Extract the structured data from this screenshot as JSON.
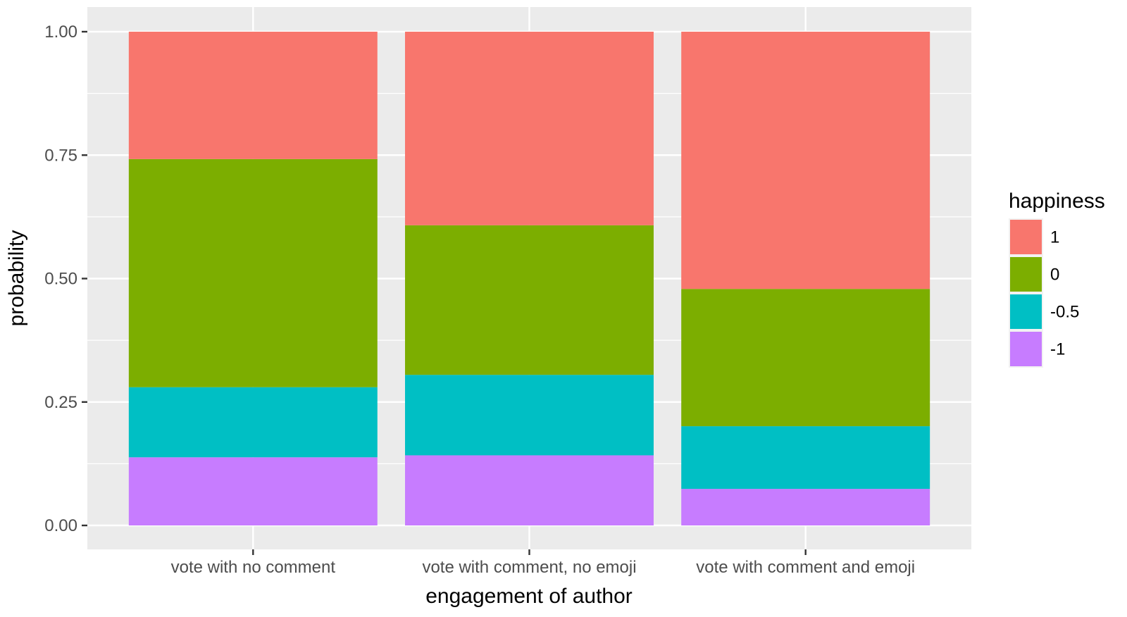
{
  "chart_data": {
    "type": "bar",
    "stacked": true,
    "categories": [
      "vote with no comment",
      "vote with comment, no emoji",
      "vote with comment and emoji"
    ],
    "series": [
      {
        "name": "-1",
        "color": "#C77CFF",
        "values": [
          0.138,
          0.142,
          0.074
        ]
      },
      {
        "name": "-0.5",
        "color": "#00BFC4",
        "values": [
          0.142,
          0.163,
          0.127
        ]
      },
      {
        "name": "0",
        "color": "#7CAE00",
        "values": [
          0.462,
          0.303,
          0.278
        ]
      },
      {
        "name": "1",
        "color": "#F8766D",
        "values": [
          0.258,
          0.392,
          0.521
        ]
      }
    ],
    "legend_order": [
      "1",
      "0",
      "-0.5",
      "-1"
    ],
    "legend_title": "happiness",
    "legend_position": "right",
    "xlabel": "engagement of author",
    "ylabel": "probability",
    "ylim": [
      0,
      1
    ],
    "yticks": [
      "0.00",
      "0.25",
      "0.50",
      "0.75",
      "1.00"
    ],
    "grid": true,
    "panel_background": "#EBEBEB"
  }
}
